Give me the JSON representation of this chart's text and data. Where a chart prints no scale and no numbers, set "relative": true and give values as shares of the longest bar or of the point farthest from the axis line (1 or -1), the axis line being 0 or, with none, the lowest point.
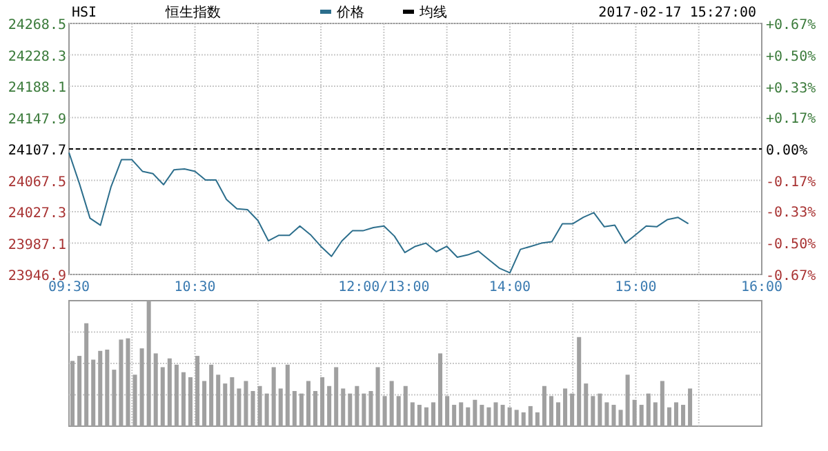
{
  "chart_data": [
    {
      "type": "line",
      "title": "恒生指数",
      "subtitle": "2017-02-17 15:27:00",
      "annotations": [
        "HSI"
      ],
      "categories": [
        "09:30",
        null,
        null,
        null,
        null,
        null,
        null,
        null,
        null,
        null,
        null,
        null,
        "10:30",
        null,
        null,
        null,
        null,
        null,
        null,
        null,
        null,
        null,
        null,
        null,
        null,
        null,
        null,
        null,
        null,
        null,
        "12:00/13:00",
        null,
        null,
        null,
        null,
        null,
        null,
        null,
        null,
        null,
        null,
        null,
        "14:00",
        null,
        null,
        null,
        null,
        null,
        null,
        null,
        null,
        null,
        null,
        null,
        "15:00",
        null,
        null,
        null,
        null,
        null,
        null,
        null,
        null,
        null,
        null,
        null,
        "16:00"
      ],
      "series": [
        {
          "name": "价格",
          "color": "#2c6e8c",
          "values": [
            24103,
            24063,
            24019,
            24010,
            24059,
            24094,
            24094,
            24079,
            24076,
            24062,
            24081,
            24082,
            24079,
            24068,
            24068,
            24043,
            24031,
            24030,
            24016,
            23990,
            23997,
            23997,
            24009,
            23998,
            23983,
            23970,
            23990,
            24003,
            24003,
            24007,
            24009,
            23996,
            23975,
            23983,
            23987,
            23976,
            23983,
            23969,
            23972,
            23977,
            23966,
            23955,
            23949,
            23979,
            23983,
            23987,
            23989,
            24012,
            24012,
            24020,
            24026,
            24008,
            24010,
            23987,
            23998,
            24009,
            24008,
            24017,
            24020,
            24012,
            null,
            null,
            null,
            null,
            null,
            null,
            null
          ]
        },
        {
          "name": "均线",
          "color": "#000000",
          "values": [
            null,
            null,
            null,
            null,
            null,
            null,
            null,
            null,
            null,
            null,
            null,
            null,
            null,
            null,
            null,
            null,
            null,
            null,
            null,
            null,
            null,
            null,
            null,
            null,
            null,
            null,
            null,
            null,
            null,
            null,
            null,
            null,
            null,
            null,
            null,
            null,
            null,
            null,
            null,
            null,
            null,
            null,
            null,
            null,
            null,
            null,
            null,
            null,
            null,
            null,
            null,
            null,
            null,
            null,
            null,
            null,
            null,
            null,
            null,
            null,
            null,
            null,
            null,
            null,
            null,
            null,
            null
          ]
        }
      ],
      "ylim": [
        23946.9,
        24268.5
      ],
      "yticks": [
        23946.9,
        23987.1,
        24027.3,
        24067.5,
        24107.7,
        24147.9,
        24188.1,
        24228.3,
        24268.5
      ],
      "y2lim": [
        -0.67,
        0.67
      ],
      "y2ticks": [
        {
          "value": -0.67,
          "label": "-0.67%"
        },
        {
          "value": -0.5,
          "label": "-0.50%"
        },
        {
          "value": -0.33,
          "label": "-0.33%"
        },
        {
          "value": -0.17,
          "label": "-0.17%"
        },
        {
          "value": 0,
          "label": "0.00%"
        },
        {
          "value": 0.17,
          "label": "+0.17%"
        },
        {
          "value": 0.33,
          "label": "+0.33%"
        },
        {
          "value": 0.5,
          "label": "+0.50%"
        },
        {
          "value": 0.67,
          "label": "+0.67%"
        }
      ],
      "ref_lines": [
        {
          "axis": "y",
          "value": 24107.7,
          "color": "#000000",
          "line_style": "dashed"
        }
      ],
      "grid": true,
      "legend": "top"
    },
    {
      "type": "bar",
      "relative": true,
      "color": "#a0a0a0",
      "grid": true,
      "categories": [
        null,
        null,
        null,
        null,
        null,
        null,
        null,
        null,
        null,
        null,
        null,
        null,
        null,
        null,
        null,
        null,
        null,
        null,
        null,
        null,
        null,
        null,
        null,
        null,
        null,
        null,
        null,
        null,
        null,
        null,
        null,
        null,
        null,
        null,
        null,
        null,
        null,
        null,
        null,
        null,
        null,
        null,
        null,
        null,
        null,
        null,
        null,
        null,
        null,
        null,
        null,
        null,
        null,
        null,
        null,
        null,
        null,
        null,
        null,
        null,
        null,
        null,
        null,
        null,
        null,
        null,
        null,
        null,
        null,
        null,
        null,
        null,
        null,
        null,
        null,
        null,
        null,
        null,
        null,
        null,
        null,
        null,
        null,
        null,
        null,
        null,
        null,
        null,
        null,
        null
      ],
      "values": [
        0.52,
        0.56,
        0.82,
        0.53,
        0.6,
        0.61,
        0.45,
        0.69,
        0.7,
        0.41,
        0.62,
        1.0,
        0.58,
        0.47,
        0.54,
        0.49,
        0.43,
        0.39,
        0.56,
        0.36,
        0.49,
        0.41,
        0.34,
        0.39,
        0.3,
        0.36,
        0.28,
        0.32,
        0.26,
        0.47,
        0.3,
        0.49,
        0.28,
        0.26,
        0.36,
        0.28,
        0.39,
        0.32,
        0.47,
        0.3,
        0.26,
        0.32,
        0.26,
        0.28,
        0.47,
        0.24,
        0.36,
        0.24,
        0.32,
        0.19,
        0.17,
        0.15,
        0.19,
        0.58,
        0.24,
        0.17,
        0.19,
        0.15,
        0.21,
        0.17,
        0.15,
        0.19,
        0.17,
        0.15,
        0.13,
        0.11,
        0.16,
        0.11,
        0.32,
        0.24,
        0.19,
        0.3,
        0.26,
        0.71,
        0.34,
        0.24,
        0.26,
        0.19,
        0.17,
        0.13,
        0.41,
        0.21,
        0.17,
        0.26,
        0.19,
        0.36,
        0.15,
        0.19,
        0.17,
        0.3
      ]
    }
  ]
}
